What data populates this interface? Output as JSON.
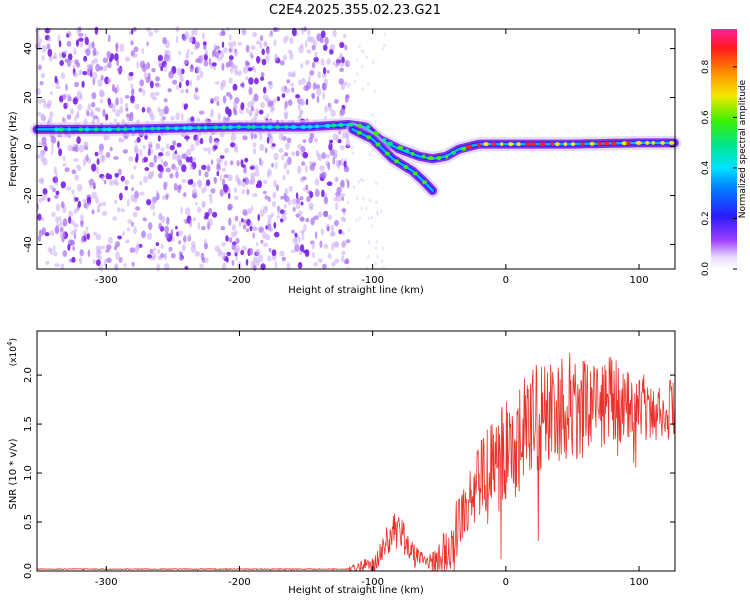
{
  "title": "C2E4.2025.355.02.23.G21",
  "colors": {
    "snr_line": "#e8332c",
    "tracker_top": "#ffffff",
    "frame": "#000000",
    "scatter": "#8a2be2"
  },
  "chart_data": [
    {
      "type": "heatmap",
      "name": "spectrogram",
      "xlabel": "Height of straight line (km)",
      "ylabel": "Frequency (Hz)",
      "xlim": [
        -352,
        127
      ],
      "ylim": [
        -50,
        48
      ],
      "xticks": [
        -300,
        -200,
        -100,
        0,
        100
      ],
      "xtick_labels": [
        "-300",
        "-200",
        "-100",
        "0",
        "100"
      ],
      "yticks": [
        -40,
        -20,
        0,
        20,
        40
      ],
      "ytick_labels": [
        "-40",
        "-20",
        "0",
        "20",
        "40"
      ],
      "noise_region_x": [
        -352,
        -118
      ],
      "tracks": [
        {
          "name": "main-track",
          "points": [
            [
              -352,
              7
            ],
            [
              -300,
              7
            ],
            [
              -250,
              7.5
            ],
            [
              -200,
              8
            ],
            [
              -150,
              8
            ],
            [
              -118,
              9
            ],
            [
              -105,
              8
            ],
            [
              -95,
              3
            ],
            [
              -80,
              -1
            ],
            [
              -65,
              -4
            ],
            [
              -55,
              -5
            ],
            [
              -45,
              -4
            ],
            [
              -35,
              -1
            ],
            [
              -20,
              1
            ],
            [
              0,
              1
            ],
            [
              50,
              1
            ],
            [
              100,
              1.5
            ],
            [
              127,
              1.5
            ]
          ]
        },
        {
          "name": "lower-branch",
          "points": [
            [
              -115,
              7
            ],
            [
              -100,
              3
            ],
            [
              -85,
              -5
            ],
            [
              -70,
              -10
            ],
            [
              -62,
              -14
            ],
            [
              -55,
              -18
            ]
          ]
        }
      ],
      "colorbar": {
        "label": "Normalized spectral amplitude",
        "range": [
          0.0,
          0.95
        ],
        "ticks": [
          0.0,
          0.2,
          0.4,
          0.6,
          0.8
        ],
        "tick_labels": [
          "0.0",
          "0.2",
          "0.4",
          "0.6",
          "0.8"
        ]
      }
    },
    {
      "type": "line",
      "name": "snr",
      "xlabel": "Height of straight line (km)",
      "ylabel": "SNR (10 * v/v)",
      "scale_label": "(x10",
      "scale_exp": "4",
      "xlim": [
        -352,
        127
      ],
      "ylim": [
        0,
        2.45
      ],
      "xticks": [
        -300,
        -200,
        -100,
        0,
        100
      ],
      "xtick_labels": [
        "-300",
        "-200",
        "-100",
        "0",
        "100"
      ],
      "yticks": [
        0.0,
        0.5,
        1.0,
        1.5,
        2.0
      ],
      "ytick_labels": [
        "0.0",
        "0.5",
        "1.0",
        "1.5",
        "2.0"
      ],
      "envelope": [
        [
          -352,
          0.02
        ],
        [
          -120,
          0.02
        ],
        [
          -105,
          0.05
        ],
        [
          -95,
          0.12
        ],
        [
          -88,
          0.35
        ],
        [
          -80,
          0.45
        ],
        [
          -75,
          0.3
        ],
        [
          -68,
          0.15
        ],
        [
          -60,
          0.1
        ],
        [
          -52,
          0.1
        ],
        [
          -45,
          0.2
        ],
        [
          -40,
          0.35
        ],
        [
          -30,
          0.7
        ],
        [
          -20,
          0.95
        ],
        [
          -10,
          1.05
        ],
        [
          0,
          1.2
        ],
        [
          10,
          1.35
        ],
        [
          20,
          1.5
        ],
        [
          30,
          1.6
        ],
        [
          40,
          1.7
        ],
        [
          50,
          1.7
        ],
        [
          60,
          1.7
        ],
        [
          70,
          1.75
        ],
        [
          80,
          1.75
        ],
        [
          90,
          1.7
        ],
        [
          100,
          1.7
        ],
        [
          110,
          1.65
        ],
        [
          127,
          1.65
        ]
      ],
      "noise_amplitude": [
        [
          -352,
          0.005
        ],
        [
          -120,
          0.005
        ],
        [
          -100,
          0.12
        ],
        [
          -80,
          0.2
        ],
        [
          -60,
          0.05
        ],
        [
          -40,
          0.3
        ],
        [
          -20,
          0.45
        ],
        [
          0,
          0.55
        ],
        [
          20,
          0.6
        ],
        [
          40,
          0.6
        ],
        [
          60,
          0.55
        ],
        [
          80,
          0.45
        ],
        [
          100,
          0.35
        ],
        [
          127,
          0.3
        ]
      ]
    }
  ]
}
